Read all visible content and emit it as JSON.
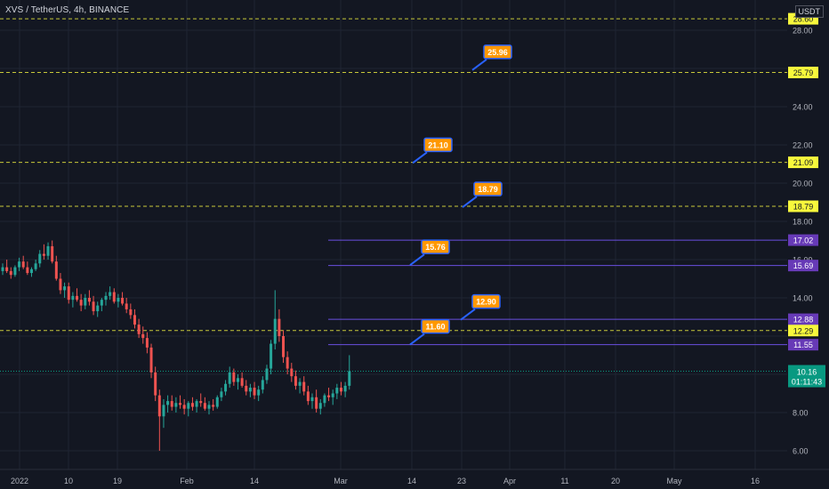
{
  "header": {
    "symbol": "XVS / TetherUS, 4h, BINANCE",
    "currency": "USDT"
  },
  "colors": {
    "background": "#131722",
    "grid": "#1f2433",
    "axis_text": "#b2b5be",
    "up": "#26a69a",
    "down": "#ef5350",
    "yellow_line": "#c8c83a",
    "yellow_label": "#f7f73c",
    "purple_line": "#6a4fe0",
    "purple_label": "#673ab7",
    "callout_fill": "#ff9800",
    "callout_border": "#2962ff",
    "last_price": "#089981"
  },
  "chart_data": {
    "type": "candlestick",
    "ylim": [
      5.0,
      29.3
    ],
    "y_ticks": [
      "28.00",
      "24.00",
      "22.00",
      "20.00",
      "18.00",
      "16.00",
      "14.00",
      "8.00",
      "6.00"
    ],
    "x_ticks": [
      "2022",
      "10",
      "19",
      "Feb",
      "14",
      "Mar",
      "14",
      "23",
      "Apr",
      "11",
      "20",
      "May",
      "16"
    ],
    "grid": true,
    "horizontal_levels": [
      {
        "label": "28.60",
        "value": 28.6,
        "style": "yellow"
      },
      {
        "label": "25.79",
        "value": 25.79,
        "style": "yellow"
      },
      {
        "label": "21.09",
        "value": 21.09,
        "style": "yellow"
      },
      {
        "label": "18.79",
        "value": 18.79,
        "style": "yellow"
      },
      {
        "label": "17.02",
        "value": 17.02,
        "style": "purple"
      },
      {
        "label": "15.69",
        "value": 15.69,
        "style": "purple"
      },
      {
        "label": "12.88",
        "value": 12.88,
        "style": "purple"
      },
      {
        "label": "12.29",
        "value": 12.29,
        "style": "yellow"
      },
      {
        "label": "11.55",
        "value": 11.55,
        "style": "purple"
      }
    ],
    "callouts": [
      {
        "label": "25.96",
        "value": 25.96
      },
      {
        "label": "21.10",
        "value": 21.1
      },
      {
        "label": "18.79",
        "value": 18.79
      },
      {
        "label": "15.76",
        "value": 15.76
      },
      {
        "label": "12.90",
        "value": 12.9
      },
      {
        "label": "11.60",
        "value": 11.6
      }
    ],
    "last_price": {
      "value": 10.16,
      "label": "10.16",
      "countdown": "01:11:43"
    },
    "candles": [
      [
        15.4,
        15.8,
        15.2,
        15.6
      ],
      [
        15.6,
        16.0,
        15.3,
        15.4
      ],
      [
        15.4,
        15.6,
        15.0,
        15.2
      ],
      [
        15.2,
        15.7,
        15.1,
        15.6
      ],
      [
        15.6,
        16.1,
        15.4,
        15.9
      ],
      [
        15.9,
        16.2,
        15.5,
        15.6
      ],
      [
        15.6,
        15.9,
        15.2,
        15.3
      ],
      [
        15.3,
        15.6,
        15.1,
        15.5
      ],
      [
        15.5,
        16.0,
        15.4,
        15.8
      ],
      [
        15.8,
        16.5,
        15.6,
        16.3
      ],
      [
        16.3,
        16.8,
        16.0,
        16.2
      ],
      [
        16.2,
        16.9,
        16.0,
        16.7
      ],
      [
        16.7,
        17.0,
        15.8,
        15.9
      ],
      [
        15.9,
        16.2,
        14.9,
        15.0
      ],
      [
        15.0,
        15.3,
        14.2,
        14.4
      ],
      [
        14.4,
        14.8,
        14.0,
        14.6
      ],
      [
        14.6,
        14.8,
        13.7,
        13.9
      ],
      [
        13.9,
        14.3,
        13.5,
        14.1
      ],
      [
        14.1,
        14.5,
        13.8,
        13.9
      ],
      [
        13.9,
        14.2,
        13.3,
        13.6
      ],
      [
        13.6,
        14.2,
        13.4,
        14.0
      ],
      [
        14.0,
        14.4,
        13.6,
        13.8
      ],
      [
        13.8,
        14.1,
        13.1,
        13.3
      ],
      [
        13.3,
        13.8,
        13.0,
        13.6
      ],
      [
        13.6,
        14.0,
        13.3,
        13.9
      ],
      [
        13.9,
        14.3,
        13.6,
        14.1
      ],
      [
        14.1,
        14.6,
        13.9,
        14.3
      ],
      [
        14.3,
        14.5,
        13.7,
        13.8
      ],
      [
        13.8,
        14.2,
        13.5,
        14.0
      ],
      [
        14.0,
        14.3,
        13.6,
        13.7
      ],
      [
        13.7,
        14.0,
        13.2,
        13.4
      ],
      [
        13.4,
        13.7,
        12.9,
        13.1
      ],
      [
        13.1,
        13.4,
        12.4,
        12.6
      ],
      [
        12.6,
        12.9,
        11.9,
        12.1
      ],
      [
        12.1,
        12.5,
        11.6,
        11.9
      ],
      [
        11.9,
        12.2,
        11.1,
        11.4
      ],
      [
        11.4,
        11.6,
        9.8,
        10.1
      ],
      [
        10.1,
        10.4,
        8.6,
        8.9
      ],
      [
        8.9,
        9.2,
        6.0,
        7.8
      ],
      [
        7.8,
        8.7,
        7.2,
        8.4
      ],
      [
        8.4,
        8.9,
        8.0,
        8.6
      ],
      [
        8.6,
        8.9,
        8.1,
        8.3
      ],
      [
        8.3,
        8.8,
        8.0,
        8.5
      ],
      [
        8.5,
        8.9,
        8.2,
        8.4
      ],
      [
        8.4,
        8.7,
        7.9,
        8.2
      ],
      [
        8.2,
        8.6,
        7.8,
        8.5
      ],
      [
        8.5,
        8.8,
        8.1,
        8.3
      ],
      [
        8.3,
        8.7,
        8.0,
        8.6
      ],
      [
        8.6,
        9.0,
        8.3,
        8.5
      ],
      [
        8.5,
        8.8,
        8.1,
        8.2
      ],
      [
        8.2,
        8.6,
        7.9,
        8.4
      ],
      [
        8.4,
        8.7,
        8.1,
        8.3
      ],
      [
        8.3,
        8.9,
        8.2,
        8.8
      ],
      [
        8.8,
        9.3,
        8.6,
        9.1
      ],
      [
        9.1,
        9.7,
        8.9,
        9.5
      ],
      [
        9.5,
        10.4,
        9.3,
        10.1
      ],
      [
        10.1,
        10.3,
        9.4,
        9.6
      ],
      [
        9.6,
        10.0,
        9.2,
        9.8
      ],
      [
        9.8,
        10.1,
        9.3,
        9.4
      ],
      [
        9.4,
        9.7,
        8.9,
        9.1
      ],
      [
        9.1,
        9.5,
        8.8,
        9.3
      ],
      [
        9.3,
        9.6,
        8.7,
        8.9
      ],
      [
        8.9,
        9.4,
        8.6,
        9.2
      ],
      [
        9.2,
        9.9,
        9.0,
        9.7
      ],
      [
        9.7,
        10.5,
        9.5,
        10.3
      ],
      [
        10.3,
        11.8,
        10.0,
        11.6
      ],
      [
        11.6,
        14.4,
        11.3,
        12.9
      ],
      [
        12.9,
        13.4,
        11.7,
        12.0
      ],
      [
        12.0,
        12.3,
        10.6,
        10.9
      ],
      [
        10.9,
        11.2,
        10.0,
        10.3
      ],
      [
        10.3,
        10.6,
        9.6,
        9.9
      ],
      [
        9.9,
        10.2,
        9.2,
        9.4
      ],
      [
        9.4,
        9.8,
        9.0,
        9.6
      ],
      [
        9.6,
        9.9,
        8.9,
        9.1
      ],
      [
        9.1,
        9.4,
        8.4,
        8.6
      ],
      [
        8.6,
        9.0,
        8.2,
        8.8
      ],
      [
        8.8,
        9.2,
        8.0,
        8.2
      ],
      [
        8.2,
        8.7,
        7.9,
        8.5
      ],
      [
        8.5,
        9.0,
        8.3,
        8.9
      ],
      [
        8.9,
        9.3,
        8.6,
        8.8
      ],
      [
        8.8,
        9.2,
        8.4,
        9.0
      ],
      [
        9.0,
        9.5,
        8.7,
        9.3
      ],
      [
        9.3,
        9.6,
        8.9,
        9.1
      ],
      [
        9.1,
        9.6,
        8.8,
        9.4
      ],
      [
        9.4,
        11.0,
        9.2,
        10.16
      ]
    ]
  }
}
